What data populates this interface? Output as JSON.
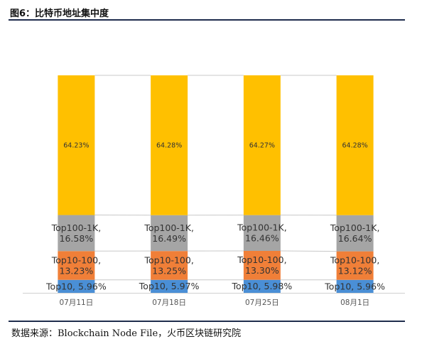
{
  "figure": {
    "title": "图6：比特币地址集中度"
  },
  "source": {
    "text": "数据来源：Blockchain Node File，火币区块链研究院"
  },
  "colors": {
    "Top10": "#4a8fd6",
    "Top10-100": "#f07f38",
    "Top100-1K": "#a5a5a5",
    "rest": "#ffc000",
    "connector": "#c8c8c8",
    "axis": "#d0d0d0"
  },
  "chart_data": {
    "type": "bar",
    "stacked": true,
    "percent": true,
    "categories": [
      "07月11日",
      "07月18日",
      "07月25日",
      "08月1日"
    ],
    "series": [
      {
        "name": "Top10",
        "values": [
          5.96,
          5.97,
          5.98,
          5.96
        ],
        "labels": [
          "Top10, 5.96%",
          "Top10, 5.97%",
          "Top10, 5.98%",
          "Top10, 5.96%"
        ]
      },
      {
        "name": "Top10-100",
        "values": [
          13.23,
          13.25,
          13.3,
          13.12
        ],
        "labels": [
          "Top10-100,\n13.23%",
          "Top10-100,\n13.25%",
          "Top10-100,\n13.30%",
          "Top10-100,\n13.12%"
        ]
      },
      {
        "name": "Top100-1K",
        "values": [
          16.58,
          16.49,
          16.46,
          16.64
        ],
        "labels": [
          "Top100-1K,\n16.58%",
          "Top100-1K,\n16.49%",
          "Top100-1K,\n16.46%",
          "Top100-1K,\n16.64%"
        ]
      },
      {
        "values": [
          64.23,
          64.28,
          64.27,
          64.28
        ],
        "labels": [
          "64.23%",
          "64.28%",
          "64.27%",
          "64.28%"
        ]
      }
    ],
    "ylim": [
      0,
      100
    ],
    "grid": false,
    "legend": "none",
    "series_connector_lines": true
  }
}
